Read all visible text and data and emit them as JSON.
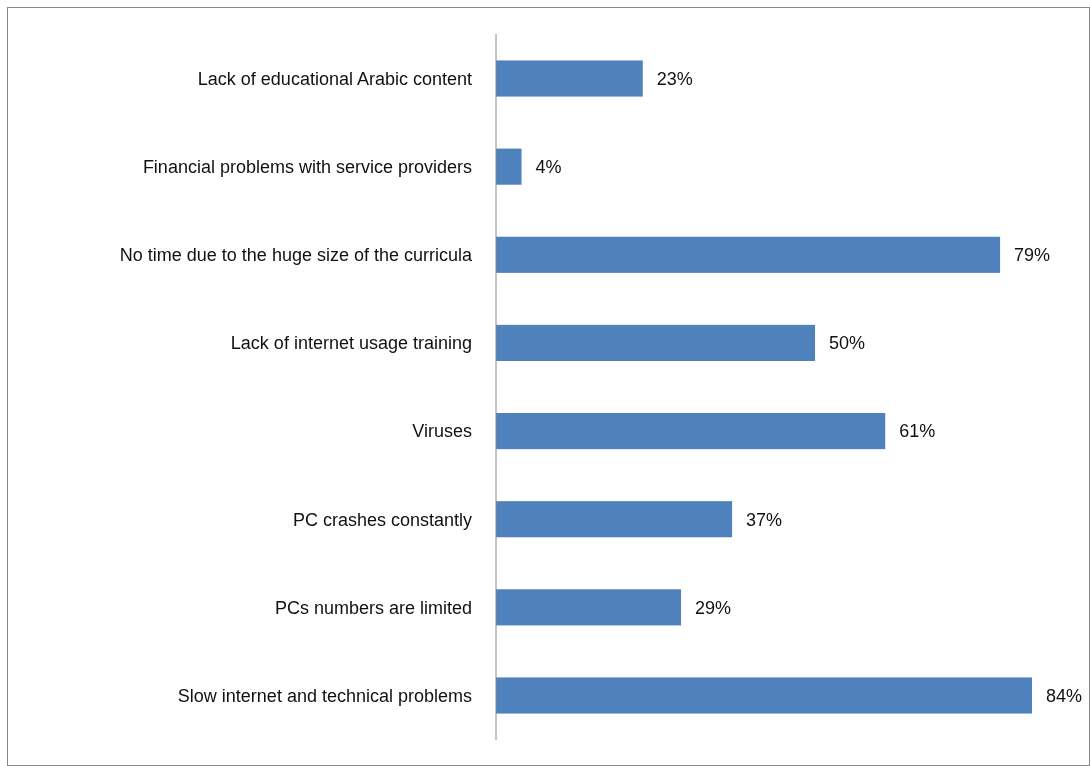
{
  "chart_data": {
    "type": "bar",
    "orientation": "horizontal",
    "categories": [
      "Lack of educational Arabic content",
      "Financial problems with service providers",
      "No time due to the huge size of the curricula",
      "Lack of internet usage training",
      "Viruses",
      "PC crashes constantly",
      "PCs numbers are limited",
      "Slow internet and technical problems"
    ],
    "values": [
      23,
      4,
      79,
      50,
      61,
      37,
      29,
      84
    ],
    "value_labels": [
      "23%",
      "4%",
      "79%",
      "50%",
      "61%",
      "37%",
      "29%",
      "84%"
    ],
    "color": "#4f81bd"
  }
}
